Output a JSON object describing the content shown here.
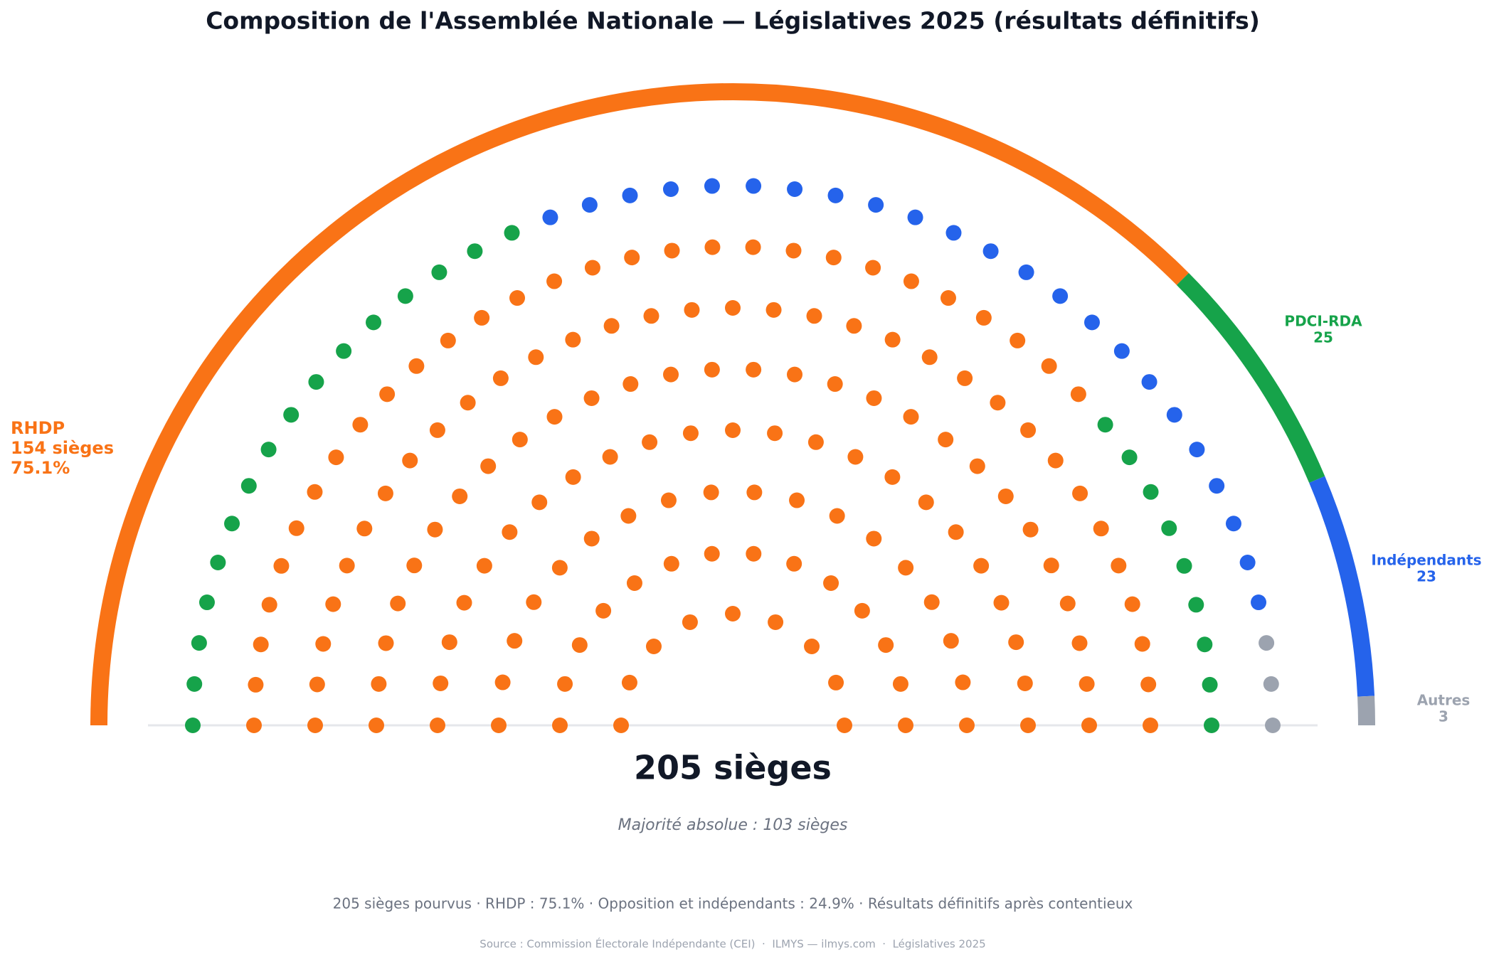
{
  "chart_data": {
    "type": "parliament",
    "title": "Composition de l'Assemblée Nationale — Législatives 2025 (résultats définitifs)",
    "categories": [
      "RHDP",
      "PDCI-RDA",
      "Indépendants",
      "Autres"
    ],
    "values": [
      154,
      25,
      23,
      3
    ],
    "value_labels": [
      "154 sièges",
      "25",
      "23",
      "3"
    ],
    "colors": [
      "#f97316",
      "#16a34a",
      "#2563eb",
      "#9ca3af"
    ],
    "share": {
      "value": 75.1,
      "label": "75.1%"
    },
    "total": {
      "value": 205,
      "label": "205 sièges"
    },
    "subtitle": "Majorité absolue : 103 sièges",
    "note": "205 sièges pourvus · RHDP : 75.1% · Opposition et indépendants : 24.9% · Résultats définitifs après contentieux",
    "source": "Source : Commission Électorale Indépendante (CEI)  ·  ILMYS — ilmys.com  ·  Législatives 2025"
  }
}
